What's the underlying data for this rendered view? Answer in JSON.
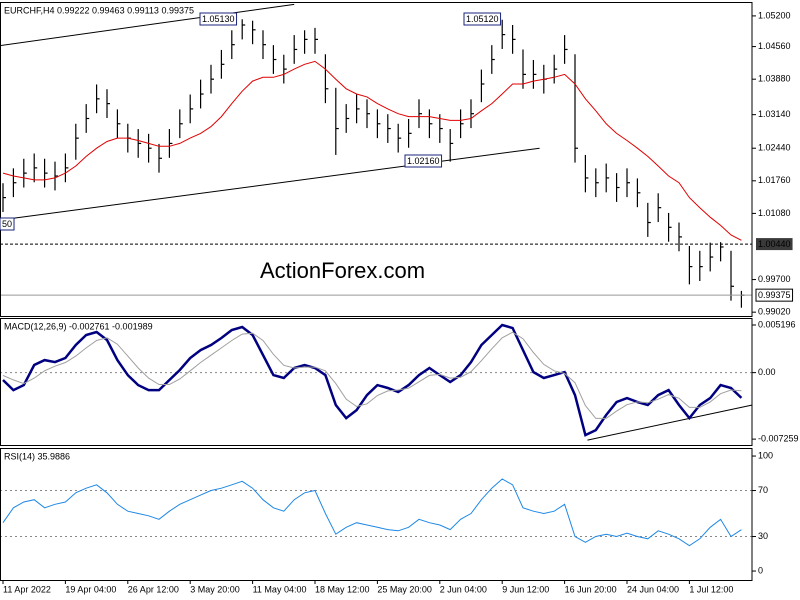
{
  "chart_data": [
    {
      "type": "ohlc",
      "title": "EURCHF,H4 0.99222 0.99463 0.99113 0.99375",
      "color": "#000000",
      "high": [
        1.0171,
        1.0202,
        1.0222,
        1.0233,
        1.0222,
        1.0216,
        1.0233,
        1.0295,
        1.0336,
        1.0377,
        1.0367,
        1.0325,
        1.0295,
        1.0284,
        1.0274,
        1.0253,
        1.0284,
        1.0325,
        1.0356,
        1.0387,
        1.0418,
        1.0449,
        1.049,
        1.0513,
        1.051,
        1.049,
        1.0459,
        1.0439,
        1.048,
        1.049,
        1.0495,
        1.044,
        1.037,
        1.0336,
        1.0356,
        1.0346,
        1.0325,
        1.0315,
        1.0295,
        1.0305,
        1.0346,
        1.0325,
        1.0315,
        1.0284,
        1.0325,
        1.0346,
        1.0408,
        1.0459,
        1.0512,
        1.0501,
        1.045,
        1.0428,
        1.0418,
        1.0439,
        1.048,
        1.044,
        1.023,
        1.0202,
        1.0212,
        1.0192,
        1.0202,
        1.0181,
        1.013,
        1.015,
        1.0109,
        1.0089,
        1.004,
        1.003,
        1.0047,
        1.0048,
        1.003,
        0.99463
      ],
      "low": [
        1.0111,
        1.0142,
        1.0162,
        1.0173,
        1.0162,
        1.0156,
        1.0173,
        1.022,
        1.0276,
        1.0317,
        1.0307,
        1.0265,
        1.0235,
        1.0224,
        1.0214,
        1.0193,
        1.0224,
        1.0265,
        1.0296,
        1.0327,
        1.0358,
        1.0389,
        1.043,
        1.0471,
        1.0461,
        1.043,
        1.0399,
        1.0379,
        1.042,
        1.0441,
        1.0441,
        1.0338,
        1.023,
        1.0276,
        1.0296,
        1.0286,
        1.0265,
        1.0255,
        1.0235,
        1.0245,
        1.0286,
        1.0265,
        1.0255,
        1.0216,
        1.0265,
        1.0286,
        1.034,
        1.0399,
        1.0451,
        1.0441,
        1.0368,
        1.0368,
        1.0358,
        1.0379,
        1.042,
        1.0214,
        1.0152,
        1.0142,
        1.0152,
        1.0132,
        1.0142,
        1.0121,
        1.0059,
        1.009,
        1.0049,
        1.0029,
        0.996,
        0.9967,
        0.9987,
        1.0008,
        0.9926,
        0.99113
      ],
      "close": [
        1.0141,
        1.0172,
        1.0192,
        1.0203,
        1.0192,
        1.0186,
        1.0203,
        1.0265,
        1.0306,
        1.0347,
        1.0337,
        1.0295,
        1.0265,
        1.0254,
        1.0244,
        1.0223,
        1.0254,
        1.0295,
        1.0326,
        1.0357,
        1.0388,
        1.0419,
        1.046,
        1.0501,
        1.0491,
        1.046,
        1.0429,
        1.0409,
        1.045,
        1.0471,
        1.0471,
        1.0368,
        1.0285,
        1.0306,
        1.0326,
        1.0316,
        1.0295,
        1.0285,
        1.0265,
        1.0275,
        1.0316,
        1.0295,
        1.0285,
        1.0254,
        1.0295,
        1.0316,
        1.0378,
        1.0429,
        1.0481,
        1.0471,
        1.0398,
        1.0398,
        1.0388,
        1.0409,
        1.045,
        1.0244,
        1.0182,
        1.0172,
        1.0182,
        1.0162,
        1.0172,
        1.0151,
        1.0089,
        1.012,
        1.0079,
        1.0059,
        0.9997,
        0.9997,
        1.0017,
        1.0038,
        0.9956,
        0.99375
      ],
      "ma": {
        "color": "#e00000",
        "values": [
          1.0192,
          1.0186,
          1.0182,
          1.0178,
          1.0178,
          1.0182,
          1.0192,
          1.0207,
          1.0227,
          1.0244,
          1.0258,
          1.0265,
          1.0265,
          1.026,
          1.0254,
          1.0248,
          1.0248,
          1.0254,
          1.0265,
          1.0275,
          1.0289,
          1.031,
          1.0337,
          1.0363,
          1.0384,
          1.0392,
          1.0392,
          1.0398,
          1.0409,
          1.0419,
          1.0425,
          1.0409,
          1.0388,
          1.0368,
          1.0357,
          1.0351,
          1.0337,
          1.0326,
          1.0316,
          1.031,
          1.031,
          1.031,
          1.0306,
          1.0302,
          1.0302,
          1.0306,
          1.0322,
          1.0337,
          1.0357,
          1.0378,
          1.0378,
          1.0384,
          1.0388,
          1.0392,
          1.0398,
          1.0378,
          1.0347,
          1.0322,
          1.0295,
          1.0275,
          1.026,
          1.0244,
          1.0227,
          1.0207,
          1.0186,
          1.0172,
          1.0141,
          1.012,
          1.01,
          1.0083,
          1.0063,
          1.0052
        ]
      },
      "ylim": [
        0.9894,
        1.0549
      ],
      "yticks": [
        {
          "value": 1.052,
          "label": "1.05200"
        },
        {
          "value": 1.0456,
          "label": "1.04560"
        },
        {
          "value": 1.0388,
          "label": "1.03880"
        },
        {
          "value": 1.0314,
          "label": "1.03140"
        },
        {
          "value": 1.0244,
          "label": "1.02440"
        },
        {
          "value": 1.0176,
          "label": "1.01760"
        },
        {
          "value": 1.0108,
          "label": "1.01080"
        },
        {
          "value": 0.997,
          "label": "0.99700"
        },
        {
          "value": 0.9902,
          "label": "0.99020"
        }
      ],
      "levels": [
        {
          "value": 1.0044,
          "label": "1.00440"
        }
      ],
      "last": {
        "value": 0.99375,
        "label": "0.99375"
      },
      "trendlines": [
        {
          "x": [
            -0.3,
            28
          ],
          "y": [
            1.0458,
            1.0544
          ]
        },
        {
          "x": [
            0,
            51.6
          ],
          "y": [
            1.0095,
            1.0244
          ]
        }
      ],
      "annotations": [
        "1.05130",
        "1.05120",
        "1.02160",
        "50"
      ],
      "watermark": "ActionForex.com"
    },
    {
      "type": "line",
      "title": "MACD(12,26,9) -0.002761 -0.001989",
      "series": [
        {
          "color": "#000080",
          "values": [
            -0.00081,
            -0.00191,
            -0.00136,
            0.00083,
            0.00137,
            0.00115,
            0.00159,
            0.00301,
            0.0041,
            0.00443,
            0.00356,
            0.00137,
            -0.00027,
            -0.00136,
            -0.00191,
            -0.00191,
            -0.00081,
            0.00028,
            0.00159,
            0.00246,
            0.00301,
            0.00378,
            0.00465,
            0.00498,
            0.0041,
            0.00192,
            -0.00027,
            -0.00059,
            0.0005,
            0.00083,
            0.0005,
            -0.00027,
            -0.00354,
            -0.00496,
            -0.00409,
            -0.00245,
            -0.00136,
            -0.00168,
            -0.00212,
            -0.00136,
            -0.00027,
            0.0005,
            -0.00027,
            -0.00103,
            -0.00027,
            0.00115,
            0.00301,
            0.0041,
            0.0052,
            0.00487,
            0.00246,
            6e-05,
            -0.00059,
            -0.00027,
            6e-05,
            -0.00245,
            -0.00682,
            -0.00627,
            -0.00463,
            -0.00321,
            -0.00278,
            -0.00321,
            -0.00354,
            -0.00245,
            -0.00191,
            -0.00354,
            -0.00496,
            -0.00354,
            -0.00278,
            -0.00136,
            -0.00168,
            -0.002761
          ]
        },
        {
          "color": "#a0a0a0",
          "values": [
            -0.0003,
            -0.0008,
            -0.0012,
            -0.0006,
            0.0002,
            0.0007,
            0.0011,
            0.0018,
            0.0027,
            0.0035,
            0.0038,
            0.0031,
            0.0018,
            0.0005,
            -0.0006,
            -0.0013,
            -0.0013,
            -0.0007,
            0.0002,
            0.0011,
            0.0019,
            0.0027,
            0.0035,
            0.0042,
            0.0043,
            0.0035,
            0.002,
            0.0008,
            0.0005,
            0.0006,
            0.0006,
            0.0002,
            -0.0012,
            -0.0029,
            -0.0037,
            -0.0034,
            -0.0025,
            -0.002,
            -0.0019,
            -0.0017,
            -0.001,
            -0.0003,
            -0.0002,
            -0.0006,
            -0.0005,
            0.0001,
            0.0013,
            0.0026,
            0.0038,
            0.0044,
            0.0037,
            0.0022,
            0.0009,
            0.0002,
            -0.0001,
            -0.0011,
            -0.0036,
            -0.005,
            -0.005,
            -0.0042,
            -0.0035,
            -0.0032,
            -0.0033,
            -0.0029,
            -0.0024,
            -0.0028,
            -0.0038,
            -0.0038,
            -0.0032,
            -0.0023,
            -0.0019,
            -0.001989
          ]
        }
      ],
      "ylim": [
        -0.0079,
        0.00596
      ],
      "yticks": [
        0.005196,
        {
          "value": 0,
          "label": "0.00"
        },
        -0.007259
      ],
      "levels": [
        0
      ],
      "trendlines": [
        {
          "x": [
            56.2,
            72
          ],
          "y": [
            -0.00737,
            -0.00355
          ]
        }
      ]
    },
    {
      "type": "line",
      "title": "RSI(14) 35.9886",
      "series": [
        {
          "color": "#1e88e5",
          "values": [
            42,
            55,
            60,
            62,
            55,
            58,
            60,
            68,
            72,
            75,
            68,
            58,
            52,
            50,
            48,
            45,
            52,
            58,
            62,
            66,
            70,
            72,
            75,
            78,
            72,
            62,
            55,
            52,
            62,
            68,
            70,
            50,
            32,
            38,
            42,
            40,
            38,
            36,
            35,
            38,
            45,
            42,
            40,
            36,
            45,
            50,
            62,
            72,
            80,
            75,
            55,
            52,
            50,
            52,
            58,
            30,
            25,
            30,
            32,
            30,
            33,
            30,
            28,
            35,
            32,
            28,
            22,
            28,
            38,
            45,
            30,
            35.9886
          ]
        }
      ],
      "ylim": [
        -7.8,
        107
      ],
      "yticks": [
        100,
        70,
        30,
        0
      ],
      "levels": [
        70,
        30
      ],
      "categories": [
        "11 Apr 2022",
        null,
        null,
        null,
        null,
        null,
        "19 Apr 04:00",
        null,
        null,
        null,
        null,
        null,
        "26 Apr 12:00",
        null,
        null,
        null,
        null,
        null,
        "3 May 20:00",
        null,
        null,
        null,
        null,
        null,
        "11 May 04:00",
        null,
        null,
        null,
        null,
        null,
        "18 May 12:00",
        null,
        null,
        null,
        null,
        null,
        "25 May 20:00",
        null,
        null,
        null,
        null,
        null,
        "2 Jun 04:00",
        null,
        null,
        null,
        null,
        null,
        "9 Jun 12:00",
        null,
        null,
        null,
        null,
        null,
        "16 Jun 20:00",
        null,
        null,
        null,
        null,
        null,
        "24 Jun 04:00",
        null,
        null,
        null,
        null,
        null,
        "1 Jul 12:00",
        null,
        null,
        null,
        null,
        null
      ]
    }
  ]
}
